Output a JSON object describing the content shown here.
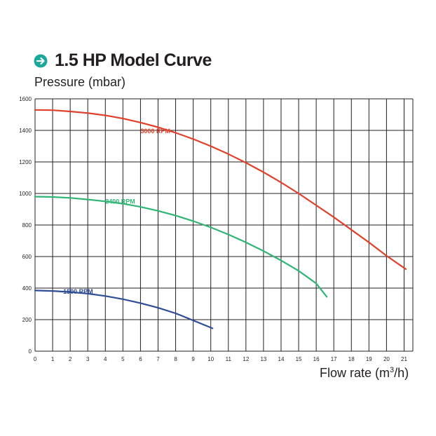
{
  "header": {
    "title": "1.5 HP Model Curve",
    "icon": "arrow-right-circle-icon",
    "icon_color": "#1aa89a"
  },
  "chart_data": {
    "type": "line",
    "title": "1.5 HP Model Curve",
    "ylabel": "Pressure (mbar)",
    "xlabel_main": "Flow rate (m",
    "xlabel_sup": "3",
    "xlabel_end": "/h)",
    "xlim": [
      0,
      21.5
    ],
    "ylim": [
      0,
      1600
    ],
    "x_ticks": [
      "0",
      "1",
      "2",
      "3",
      "4",
      "5",
      "6",
      "7",
      "8",
      "9",
      "10",
      "11",
      "12",
      "13",
      "14",
      "15",
      "16",
      "17",
      "18",
      "19",
      "20",
      "21"
    ],
    "y_ticks": [
      "0",
      "200",
      "400",
      "600",
      "800",
      "1000",
      "1200",
      "1400",
      "1600"
    ],
    "grid": true,
    "series": [
      {
        "name": "3000 RPM",
        "color": "#e0402a",
        "x": [
          0,
          1,
          2,
          3,
          4,
          5,
          6,
          7,
          8,
          9,
          10,
          11,
          12,
          13,
          14,
          15,
          16,
          17,
          18,
          19,
          20,
          21.1
        ],
        "y": [
          1530,
          1528,
          1520,
          1510,
          1495,
          1475,
          1450,
          1420,
          1385,
          1345,
          1300,
          1250,
          1195,
          1135,
          1070,
          1000,
          925,
          850,
          770,
          690,
          605,
          520
        ]
      },
      {
        "name": "2400 RPM",
        "color": "#2fb576",
        "x": [
          0,
          1,
          2,
          3,
          4,
          5,
          6,
          7,
          8,
          9,
          10,
          11,
          12,
          13,
          14,
          15,
          16,
          16.6
        ],
        "y": [
          980,
          978,
          972,
          962,
          950,
          935,
          915,
          890,
          860,
          825,
          785,
          740,
          690,
          635,
          575,
          510,
          430,
          345
        ]
      },
      {
        "name": "1500 RPM",
        "color": "#2f4d96",
        "x": [
          0,
          1,
          2,
          3,
          4,
          5,
          6,
          7,
          8,
          9,
          10.1
        ],
        "y": [
          385,
          382,
          375,
          365,
          350,
          330,
          305,
          275,
          240,
          195,
          145
        ]
      }
    ]
  }
}
